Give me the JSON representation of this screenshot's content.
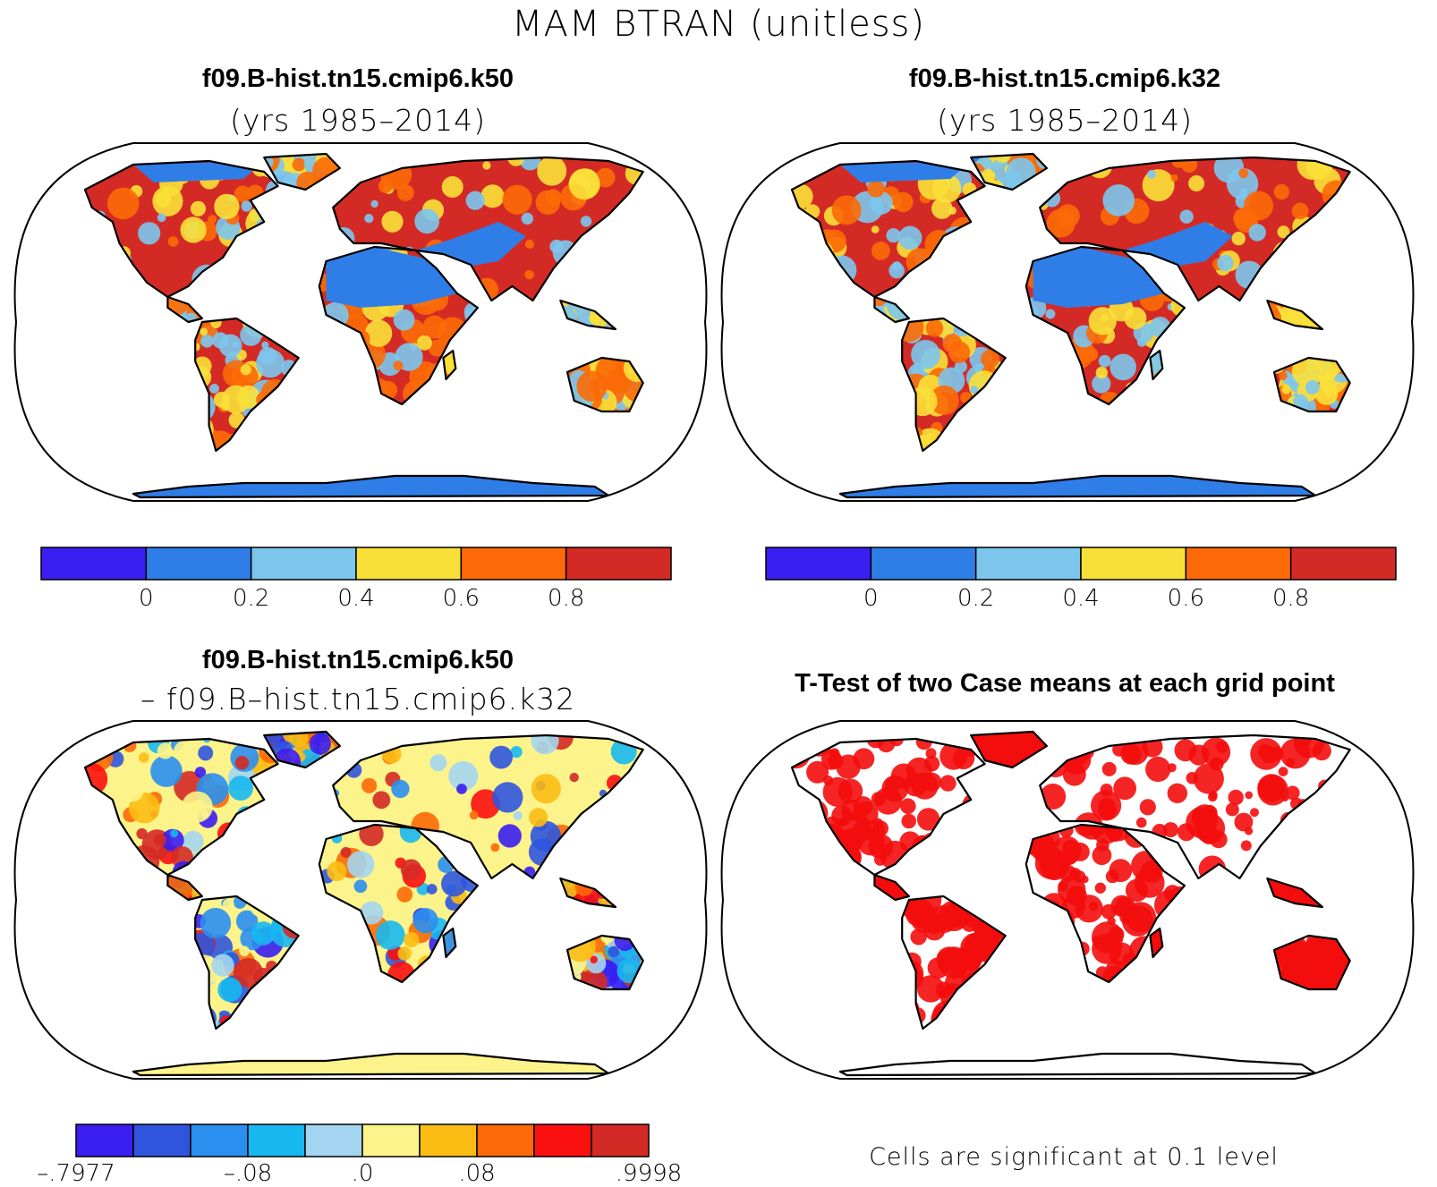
{
  "title": "MAM BTRAN (unitless)",
  "panels": [
    {
      "id": "case1",
      "title": "f09.B-hist.tn15.cmip6.k50",
      "subtitle": "(yrs 1985–2014)",
      "colorbar": {
        "colors": [
          "#3a1ef2",
          "#2f7ee8",
          "#7cc6ee",
          "#f9e039",
          "#fb6a07",
          "#d42a25"
        ],
        "ticks": [
          "0",
          "0.2",
          "0.4",
          "0.6",
          "0.8"
        ]
      }
    },
    {
      "id": "case2",
      "title": "f09.B-hist.tn15.cmip6.k32",
      "subtitle": "(yrs 1985–2014)",
      "colorbar": {
        "colors": [
          "#3a1ef2",
          "#2f7ee8",
          "#7cc6ee",
          "#f9e039",
          "#fb6a07",
          "#d42a25"
        ],
        "ticks": [
          "0",
          "0.2",
          "0.4",
          "0.6",
          "0.8"
        ]
      }
    },
    {
      "id": "diff",
      "title": "f09.B-hist.tn15.cmip6.k50",
      "subtitle": "– f09.B–hist.tn15.cmip6.k32",
      "colorbar": {
        "colors": [
          "#3a1ef2",
          "#2f55de",
          "#2b8ff0",
          "#17b8f0",
          "#a4d5f0",
          "#fcf48a",
          "#fbbd14",
          "#fb6a07",
          "#fb1010",
          "#d42a25"
        ],
        "ticks": [
          "–.7977",
          "–.08",
          ".0",
          ".08",
          ".9998"
        ]
      }
    },
    {
      "id": "ttest",
      "title": "T-Test of two Case means at each grid point",
      "note": "Cells are significant at 0.1 level"
    }
  ]
}
